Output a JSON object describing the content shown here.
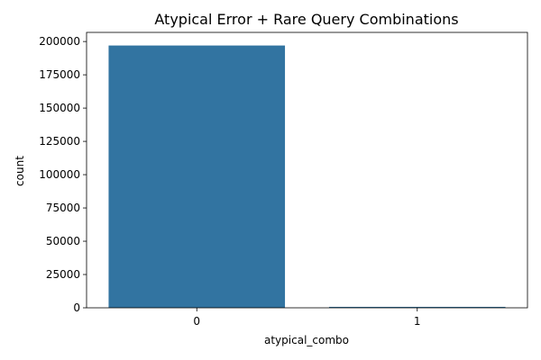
{
  "chart_data": {
    "type": "bar",
    "title": "Atypical Error + Rare Query Combinations",
    "xlabel": "atypical_combo",
    "ylabel": "count",
    "categories": [
      "0",
      "1"
    ],
    "values": [
      197000,
      700
    ],
    "ylim": [
      0,
      206850
    ],
    "yticks": [
      0,
      25000,
      50000,
      75000,
      100000,
      125000,
      150000,
      175000,
      200000
    ],
    "ytick_labels": [
      "0",
      "25000",
      "50000",
      "75000",
      "100000",
      "125000",
      "150000",
      "175000",
      "200000"
    ],
    "grid": false,
    "legend": "none",
    "colors": {
      "bar": "#3274a1",
      "axis": "#000000",
      "background": "#ffffff"
    }
  }
}
